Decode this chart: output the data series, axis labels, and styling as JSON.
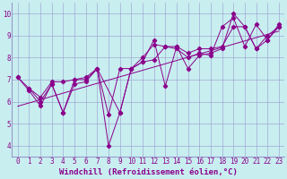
{
  "xlabel": "Windchill (Refroidissement éolien,°C)",
  "bg_color": "#c8eef0",
  "line_color": "#8b008b",
  "xlim": [
    -0.5,
    23.5
  ],
  "ylim": [
    3.5,
    10.5
  ],
  "xticks": [
    0,
    1,
    2,
    3,
    4,
    5,
    6,
    7,
    8,
    9,
    10,
    11,
    12,
    13,
    14,
    15,
    16,
    17,
    18,
    19,
    20,
    21,
    22,
    23
  ],
  "yticks": [
    4,
    5,
    6,
    7,
    8,
    9,
    10
  ],
  "series1": [
    [
      0,
      7.1
    ],
    [
      1,
      6.5
    ],
    [
      2,
      5.8
    ],
    [
      3,
      6.8
    ],
    [
      4,
      5.5
    ],
    [
      5,
      6.8
    ],
    [
      6,
      6.9
    ],
    [
      7,
      7.5
    ],
    [
      8,
      4.0
    ],
    [
      9,
      5.5
    ],
    [
      10,
      7.5
    ],
    [
      11,
      7.8
    ],
    [
      12,
      8.8
    ],
    [
      13,
      6.7
    ],
    [
      14,
      8.5
    ],
    [
      15,
      7.5
    ],
    [
      16,
      8.1
    ],
    [
      17,
      8.2
    ],
    [
      18,
      8.4
    ],
    [
      19,
      10.0
    ],
    [
      20,
      9.4
    ],
    [
      21,
      8.4
    ],
    [
      22,
      8.8
    ],
    [
      23,
      9.4
    ]
  ],
  "series2": [
    [
      1,
      6.6
    ],
    [
      2,
      6.0
    ],
    [
      3,
      6.8
    ],
    [
      4,
      5.5
    ],
    [
      5,
      7.0
    ],
    [
      6,
      7.0
    ],
    [
      7,
      7.5
    ],
    [
      9,
      5.5
    ],
    [
      10,
      7.5
    ],
    [
      11,
      7.8
    ],
    [
      12,
      7.9
    ],
    [
      13,
      8.5
    ],
    [
      14,
      8.4
    ],
    [
      15,
      8.0
    ],
    [
      16,
      8.2
    ],
    [
      17,
      8.1
    ],
    [
      18,
      9.4
    ],
    [
      19,
      9.8
    ],
    [
      20,
      8.5
    ],
    [
      21,
      9.5
    ],
    [
      22,
      8.8
    ],
    [
      23,
      9.5
    ]
  ],
  "series3": [
    [
      0,
      7.1
    ],
    [
      1,
      6.6
    ],
    [
      2,
      6.2
    ],
    [
      3,
      6.9
    ],
    [
      4,
      6.9
    ],
    [
      5,
      7.0
    ],
    [
      6,
      7.1
    ],
    [
      7,
      7.5
    ],
    [
      8,
      5.4
    ],
    [
      9,
      7.5
    ],
    [
      10,
      7.5
    ],
    [
      11,
      8.0
    ],
    [
      12,
      8.6
    ],
    [
      13,
      8.5
    ],
    [
      14,
      8.5
    ],
    [
      15,
      8.2
    ],
    [
      16,
      8.4
    ],
    [
      17,
      8.4
    ],
    [
      18,
      8.5
    ],
    [
      19,
      9.4
    ],
    [
      20,
      9.4
    ],
    [
      21,
      8.4
    ],
    [
      22,
      9.0
    ],
    [
      23,
      9.4
    ]
  ],
  "grid_color": "#9999cc",
  "tick_fontsize": 5.5,
  "label_fontsize": 6.5
}
